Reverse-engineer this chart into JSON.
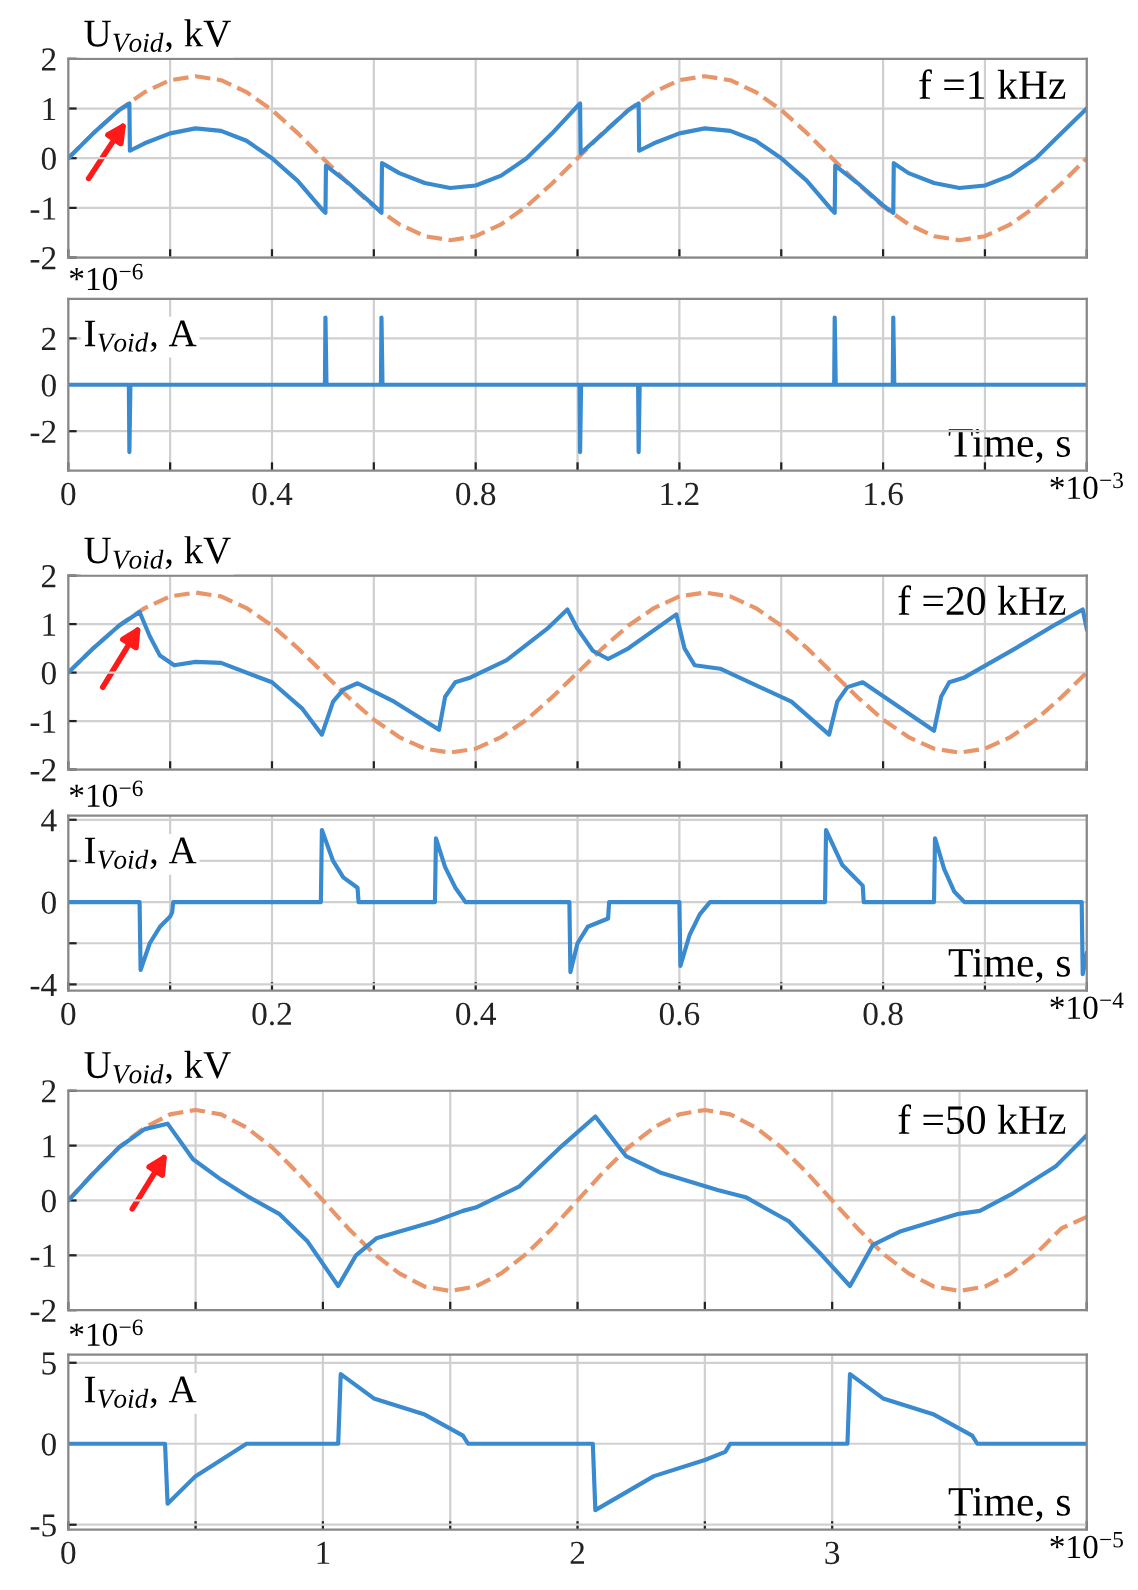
{
  "chart_data": [
    {
      "type": "line",
      "ylabel": "U$_{Void}$, kV",
      "annotations": [
        "f =1 kHz"
      ],
      "xlim": [
        0,
        2
      ],
      "xticks": [
        0,
        {
          "value": 0.2,
          "label": null
        },
        0.4,
        {
          "value": 0.6,
          "label": null
        },
        0.8,
        {
          "value": 1.0,
          "label": null
        },
        1.2,
        {
          "value": 1.4,
          "label": null
        },
        1.6,
        {
          "value": 1.8,
          "label": null
        },
        {
          "value": 2,
          "label": null
        }
      ],
      "ylim": [
        -2,
        2
      ],
      "yticks": [
        -2,
        -1,
        0,
        1,
        2
      ],
      "grid": true,
      "tick_labels": "y",
      "legend": false,
      "series": [
        {
          "color": "#e8956a",
          "line_style": "dashed",
          "x": [
            0,
            0.05,
            0.1,
            0.15,
            0.2,
            0.25,
            0.3,
            0.35,
            0.4,
            0.45,
            0.5,
            0.55,
            0.6,
            0.65,
            0.7,
            0.75,
            0.8,
            0.85,
            0.9,
            0.95,
            1.0,
            1.05,
            1.1,
            1.15,
            1.2,
            1.25,
            1.3,
            1.35,
            1.4,
            1.45,
            1.5,
            1.55,
            1.6,
            1.65,
            1.7,
            1.75,
            1.8,
            1.85,
            1.9,
            1.95,
            2.0
          ],
          "values": [
            0,
            0.51,
            0.97,
            1.33,
            1.57,
            1.65,
            1.57,
            1.33,
            0.97,
            0.51,
            0,
            -0.51,
            -0.97,
            -1.33,
            -1.57,
            -1.65,
            -1.57,
            -1.33,
            -0.97,
            -0.51,
            0,
            0.51,
            0.97,
            1.33,
            1.57,
            1.65,
            1.57,
            1.33,
            0.97,
            0.51,
            0,
            -0.51,
            -0.97,
            -1.33,
            -1.57,
            -1.65,
            -1.57,
            -1.33,
            -0.97,
            -0.51,
            0
          ]
        },
        {
          "color": "#3a8ad0",
          "line_style": "solid",
          "x": [
            0,
            0.05,
            0.1,
            0.12,
            0.121,
            0.15,
            0.2,
            0.25,
            0.3,
            0.35,
            0.4,
            0.45,
            0.5,
            0.505,
            0.506,
            0.55,
            0.6,
            0.615,
            0.616,
            0.65,
            0.7,
            0.75,
            0.8,
            0.85,
            0.9,
            0.95,
            1.0,
            1.005,
            1.006,
            1.05,
            1.1,
            1.12,
            1.121,
            1.15,
            1.2,
            1.25,
            1.3,
            1.35,
            1.4,
            1.45,
            1.5,
            1.505,
            1.506,
            1.55,
            1.6,
            1.62,
            1.621,
            1.65,
            1.7,
            1.75,
            1.8,
            1.85,
            1.9,
            1.95,
            2.0
          ],
          "values": [
            0,
            0.51,
            0.97,
            1.1,
            0.15,
            0.3,
            0.5,
            0.6,
            0.55,
            0.35,
            0.0,
            -0.45,
            -1.05,
            -1.1,
            -0.15,
            -0.5,
            -0.95,
            -1.1,
            -0.1,
            -0.3,
            -0.5,
            -0.6,
            -0.55,
            -0.35,
            0.0,
            0.5,
            1.05,
            1.1,
            0.1,
            0.5,
            0.97,
            1.1,
            0.15,
            0.3,
            0.5,
            0.6,
            0.55,
            0.35,
            0.0,
            -0.45,
            -1.05,
            -1.1,
            -0.15,
            -0.5,
            -0.95,
            -1.1,
            -0.1,
            -0.3,
            -0.5,
            -0.6,
            -0.55,
            -0.35,
            0.0,
            0.5,
            1.0
          ]
        }
      ]
    },
    {
      "type": "line",
      "ylabel": "I$_{Void}$, A",
      "xlabel": "Time, s",
      "annotations": [
        "*10$^{−6}$",
        "*10$^{−3}$"
      ],
      "xlim": [
        0,
        2
      ],
      "xticks": [
        0,
        {
          "value": 0.2,
          "label": null
        },
        0.4,
        {
          "value": 0.6,
          "label": null
        },
        0.8,
        {
          "value": 1.0,
          "label": null
        },
        1.2,
        {
          "value": 1.4,
          "label": null
        },
        1.6,
        {
          "value": 1.8,
          "label": null
        },
        {
          "value": 2,
          "label": null
        }
      ],
      "ylim": [
        -3.7,
        3.7
      ],
      "yticks": [
        -2,
        0,
        2
      ],
      "grid": true,
      "legend": false,
      "series": [
        {
          "color": "#3a8ad0",
          "line_style": "solid",
          "x": [
            0,
            0.119,
            0.12,
            0.122,
            0.504,
            0.505,
            0.507,
            0.614,
            0.615,
            0.617,
            1.004,
            1.005,
            1.007,
            1.119,
            1.12,
            1.122,
            1.504,
            1.505,
            1.507,
            1.619,
            1.62,
            1.622,
            2.0
          ],
          "values": [
            0,
            0,
            -2.9,
            0,
            0,
            2.9,
            0,
            0,
            2.9,
            0,
            0,
            -2.9,
            0,
            0,
            -2.9,
            0,
            0,
            2.9,
            0,
            0,
            2.9,
            0,
            0
          ]
        }
      ]
    },
    {
      "type": "line",
      "ylabel": "U$_{Void}$, kV",
      "annotations": [
        "f =20 kHz"
      ],
      "xlim": [
        0,
        1
      ],
      "xticks": [
        0,
        {
          "value": 0.1,
          "label": null
        },
        0.2,
        {
          "value": 0.3,
          "label": null
        },
        0.4,
        {
          "value": 0.5,
          "label": null
        },
        0.6,
        {
          "value": 0.7,
          "label": null
        },
        0.8,
        {
          "value": 0.9,
          "label": null
        },
        {
          "value": 1,
          "label": null
        }
      ],
      "ylim": [
        -2,
        2
      ],
      "yticks": [
        -2,
        -1,
        0,
        1,
        2
      ],
      "grid": true,
      "tick_labels": "y",
      "legend": false,
      "series": [
        {
          "color": "#e8956a",
          "line_style": "dashed",
          "x": [
            0,
            0.025,
            0.05,
            0.075,
            0.1,
            0.125,
            0.15,
            0.175,
            0.2,
            0.225,
            0.25,
            0.275,
            0.3,
            0.325,
            0.35,
            0.375,
            0.4,
            0.425,
            0.45,
            0.475,
            0.5,
            0.525,
            0.55,
            0.575,
            0.6,
            0.625,
            0.65,
            0.675,
            0.7,
            0.725,
            0.75,
            0.775,
            0.8,
            0.825,
            0.85,
            0.875,
            0.9,
            0.925,
            0.95,
            0.975,
            1.0
          ],
          "values": [
            0,
            0.51,
            0.97,
            1.33,
            1.57,
            1.65,
            1.57,
            1.33,
            0.97,
            0.51,
            0,
            -0.51,
            -0.97,
            -1.33,
            -1.57,
            -1.65,
            -1.57,
            -1.33,
            -0.97,
            -0.51,
            0,
            0.51,
            0.97,
            1.33,
            1.57,
            1.65,
            1.57,
            1.33,
            0.97,
            0.51,
            0,
            -0.51,
            -0.97,
            -1.33,
            -1.57,
            -1.65,
            -1.57,
            -1.33,
            -0.97,
            -0.51,
            0
          ]
        },
        {
          "color": "#3a8ad0",
          "line_style": "solid",
          "x": [
            0,
            0.025,
            0.05,
            0.07,
            0.08,
            0.09,
            0.104,
            0.125,
            0.15,
            0.2,
            0.23,
            0.249,
            0.26,
            0.27,
            0.284,
            0.32,
            0.364,
            0.37,
            0.38,
            0.395,
            0.43,
            0.47,
            0.49,
            0.5,
            0.515,
            0.53,
            0.55,
            0.597,
            0.605,
            0.615,
            0.64,
            0.71,
            0.747,
            0.755,
            0.765,
            0.78,
            0.85,
            0.857,
            0.865,
            0.88,
            0.93,
            0.97,
            0.996,
            1.0
          ],
          "values": [
            0,
            0.51,
            0.97,
            1.25,
            0.75,
            0.35,
            0.15,
            0.22,
            0.2,
            -0.2,
            -0.75,
            -1.28,
            -0.6,
            -0.35,
            -0.22,
            -0.6,
            -1.18,
            -0.5,
            -0.2,
            -0.1,
            0.25,
            0.9,
            1.3,
            0.9,
            0.45,
            0.28,
            0.5,
            1.2,
            0.5,
            0.15,
            0.08,
            -0.6,
            -1.28,
            -0.6,
            -0.3,
            -0.2,
            -1.2,
            -0.5,
            -0.2,
            -0.1,
            0.5,
            1.0,
            1.3,
            0.9
          ]
        }
      ]
    },
    {
      "type": "line",
      "ylabel": "I$_{Void}$, A",
      "xlabel": "Time, s",
      "annotations": [
        "*10$^{−6}$",
        "*10$^{−4}$"
      ],
      "xlim": [
        0,
        1
      ],
      "xticks": [
        0,
        {
          "value": 0.1,
          "label": null
        },
        0.2,
        {
          "value": 0.3,
          "label": null
        },
        0.4,
        {
          "value": 0.5,
          "label": null
        },
        0.6,
        {
          "value": 0.7,
          "label": null
        },
        0.8,
        {
          "value": 0.9,
          "label": null
        },
        {
          "value": 1,
          "label": null
        }
      ],
      "ylim": [
        -4.3,
        4.2
      ],
      "yticks": [
        -4,
        {
          "value": -2,
          "label": null
        },
        0,
        {
          "value": 2,
          "label": null
        },
        4
      ],
      "grid": true,
      "legend": false,
      "series": [
        {
          "color": "#3a8ad0",
          "line_style": "solid",
          "x": [
            0,
            0.07,
            0.071,
            0.08,
            0.09,
            0.1,
            0.102,
            0.103,
            0.248,
            0.249,
            0.26,
            0.27,
            0.284,
            0.285,
            0.36,
            0.361,
            0.37,
            0.38,
            0.39,
            0.492,
            0.493,
            0.5,
            0.51,
            0.53,
            0.531,
            0.6,
            0.601,
            0.61,
            0.62,
            0.63,
            0.743,
            0.744,
            0.76,
            0.78,
            0.781,
            0.85,
            0.851,
            0.86,
            0.87,
            0.88,
            0.995,
            0.996,
            1.0
          ],
          "values": [
            0,
            0,
            -3.3,
            -2.0,
            -1.2,
            -0.7,
            -0.5,
            0,
            0,
            3.5,
            2.0,
            1.2,
            0.7,
            0,
            0,
            3.1,
            1.7,
            0.7,
            0,
            0,
            -3.4,
            -2.0,
            -1.2,
            -0.8,
            0,
            0,
            -3.1,
            -1.6,
            -0.6,
            0,
            0,
            3.5,
            1.8,
            0.8,
            0,
            0,
            3.1,
            1.6,
            0.5,
            0,
            0,
            -3.5,
            -2.5
          ]
        }
      ]
    },
    {
      "type": "line",
      "ylabel": "U$_{Void}$, kV",
      "annotations": [
        "f =50 kHz"
      ],
      "xlim": [
        0,
        4
      ],
      "xticks": [
        0,
        {
          "value": 0.5,
          "label": null
        },
        1,
        {
          "value": 1.5,
          "label": null
        },
        2,
        {
          "value": 2.5,
          "label": null
        },
        3,
        {
          "value": 3.5,
          "label": null
        },
        {
          "value": 4,
          "label": null
        }
      ],
      "ylim": [
        -2,
        2
      ],
      "yticks": [
        -2,
        -1,
        0,
        1,
        2
      ],
      "grid": true,
      "tick_labels": "y",
      "legend": false,
      "series": [
        {
          "color": "#e8956a",
          "line_style": "dashed",
          "x": [
            0,
            0.1,
            0.2,
            0.3,
            0.4,
            0.5,
            0.6,
            0.7,
            0.8,
            0.9,
            1.0,
            1.1,
            1.2,
            1.3,
            1.4,
            1.5,
            1.6,
            1.7,
            1.8,
            1.9,
            2.0,
            2.1,
            2.2,
            2.3,
            2.4,
            2.5,
            2.6,
            2.7,
            2.8,
            2.9,
            3.0,
            3.1,
            3.2,
            3.3,
            3.4,
            3.5,
            3.6,
            3.7,
            3.8,
            3.9,
            4.0
          ],
          "values": [
            0,
            0.51,
            0.97,
            1.33,
            1.57,
            1.65,
            1.57,
            1.33,
            0.97,
            0.51,
            0,
            -0.51,
            -0.97,
            -1.33,
            -1.57,
            -1.65,
            -1.57,
            -1.33,
            -0.97,
            -0.51,
            0,
            0.51,
            0.97,
            1.33,
            1.57,
            1.65,
            1.57,
            1.33,
            0.97,
            0.51,
            0,
            -0.51,
            -0.97,
            -1.33,
            -1.57,
            -1.65,
            -1.57,
            -1.33,
            -0.97,
            -0.51,
            -0.3
          ]
        },
        {
          "color": "#3a8ad0",
          "line_style": "solid",
          "x": [
            0,
            0.1,
            0.2,
            0.3,
            0.39,
            0.49,
            0.6,
            0.71,
            0.83,
            0.94,
            1.06,
            1.13,
            1.21,
            1.44,
            1.55,
            1.6,
            1.77,
            1.94,
            2.07,
            2.19,
            2.33,
            2.55,
            2.66,
            2.83,
            2.96,
            3.07,
            3.16,
            3.27,
            3.49,
            3.58,
            3.71,
            3.88,
            4.0
          ],
          "values": [
            0,
            0.5,
            0.97,
            1.3,
            1.4,
            0.75,
            0.38,
            0.06,
            -0.25,
            -0.75,
            -1.56,
            -1.0,
            -0.69,
            -0.38,
            -0.19,
            -0.13,
            0.25,
            1.0,
            1.53,
            0.81,
            0.5,
            0.19,
            0.06,
            -0.38,
            -1.0,
            -1.56,
            -0.81,
            -0.56,
            -0.25,
            -0.19,
            0.13,
            0.63,
            1.19
          ]
        }
      ]
    },
    {
      "type": "line",
      "ylabel": "I$_{Void}$, A",
      "xlabel": "Time, s",
      "annotations": [
        "*10$^{−6}$",
        "*10$^{−5}$"
      ],
      "xlim": [
        0,
        4
      ],
      "xticks": [
        0,
        {
          "value": 0.5,
          "label": null
        },
        1,
        {
          "value": 1.5,
          "label": null
        },
        2,
        {
          "value": 2.5,
          "label": null
        },
        3,
        {
          "value": 3.5,
          "label": null
        },
        {
          "value": 4,
          "label": null
        }
      ],
      "ylim": [
        -5.3,
        5.5
      ],
      "yticks": [
        -5,
        0,
        5
      ],
      "grid": true,
      "legend": false,
      "series": [
        {
          "color": "#3a8ad0",
          "line_style": "solid",
          "x": [
            0,
            0.38,
            0.39,
            0.5,
            0.6,
            0.7,
            1.06,
            1.07,
            1.2,
            1.4,
            1.55,
            1.57,
            2.06,
            2.07,
            2.3,
            2.5,
            2.58,
            2.6,
            3.06,
            3.07,
            3.2,
            3.4,
            3.55,
            3.57,
            4.0
          ],
          "values": [
            0,
            0,
            -3.7,
            -2.0,
            -1.0,
            0,
            0,
            4.3,
            2.8,
            1.8,
            0.5,
            0,
            0,
            -4.1,
            -2.0,
            -1.0,
            -0.5,
            0,
            0,
            4.3,
            2.8,
            1.8,
            0.5,
            0,
            0
          ]
        }
      ]
    }
  ]
}
